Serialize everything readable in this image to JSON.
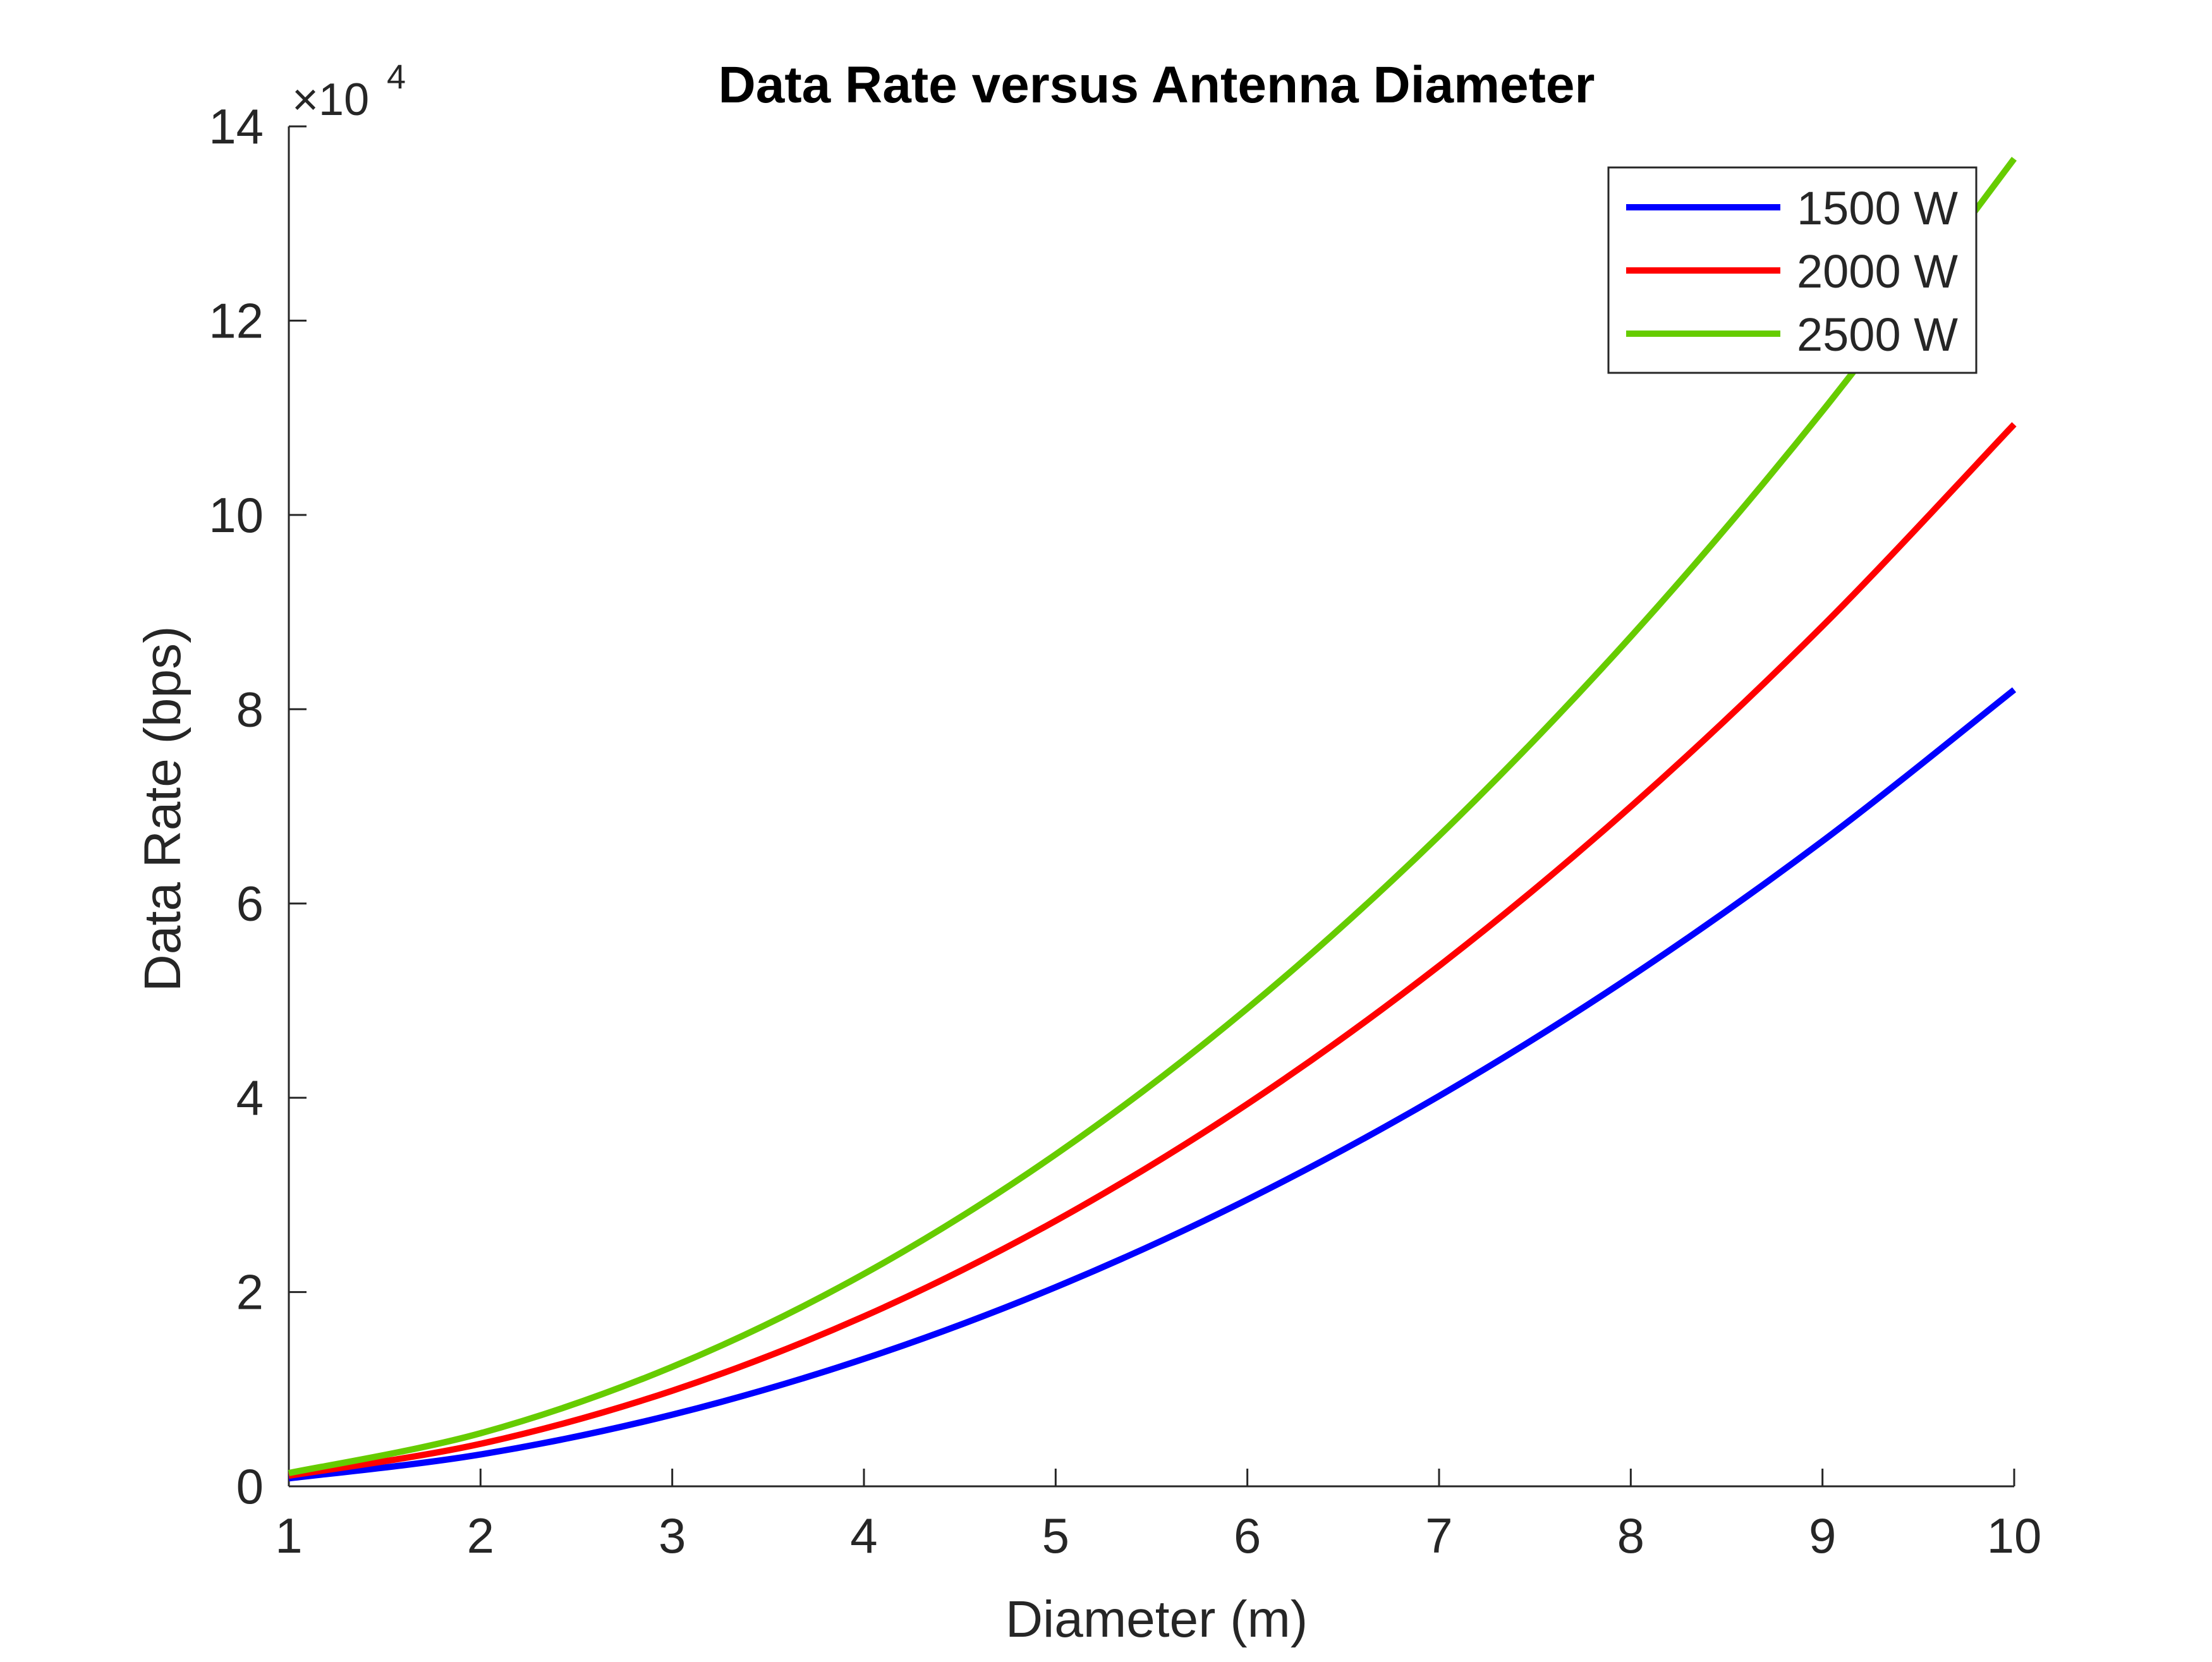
{
  "chart_data": {
    "type": "line",
    "title": "Data Rate versus Antenna Diameter",
    "xlabel": "Diameter (m)",
    "ylabel": "Data Rate (bps)",
    "xlim": [
      1,
      10
    ],
    "ylim": [
      0,
      140000
    ],
    "x_ticks": [
      "1",
      "2",
      "3",
      "4",
      "5",
      "6",
      "7",
      "8",
      "9",
      "10"
    ],
    "y_ticks": [
      "0",
      "2",
      "4",
      "6",
      "8",
      "10",
      "12",
      "14"
    ],
    "y_exponent_label": "×10",
    "y_exponent_power": "4",
    "grid": false,
    "legend_position": "top-right",
    "x": [
      1,
      2,
      3,
      4,
      5,
      6,
      7,
      8,
      9,
      10
    ],
    "series": [
      {
        "name": "1500 W",
        "color": "#0000ff",
        "values": [
          820,
          3280,
          7380,
          13120,
          20500,
          29520,
          40180,
          52480,
          66420,
          82000
        ]
      },
      {
        "name": "2000 W",
        "color": "#ff0000",
        "values": [
          1093,
          4373,
          9840,
          17493,
          27333,
          39360,
          53573,
          69973,
          88560,
          109333
        ]
      },
      {
        "name": "2500 W",
        "color": "#66cc00",
        "values": [
          1367,
          5467,
          12300,
          21867,
          34167,
          49200,
          66967,
          87467,
          110700,
          136667
        ]
      }
    ]
  }
}
